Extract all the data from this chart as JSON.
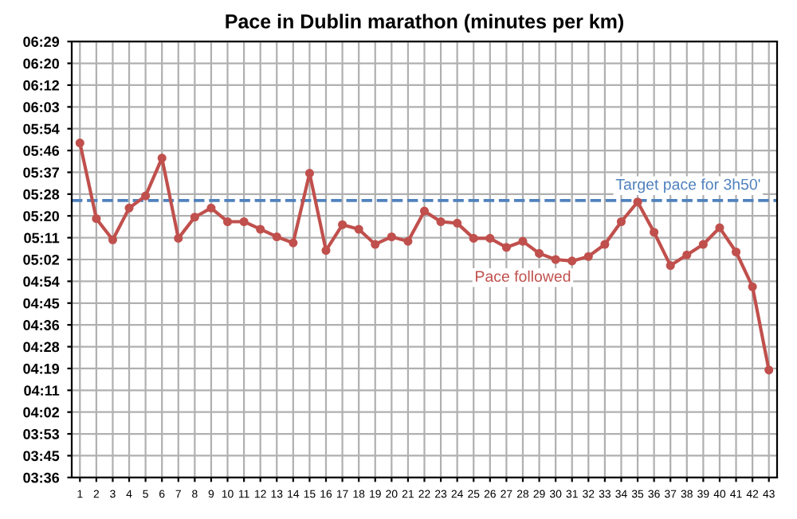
{
  "chart_data": {
    "type": "line",
    "title": "Pace in Dublin marathon (minutes per km)",
    "categories": [
      "1",
      "2",
      "3",
      "4",
      "5",
      "6",
      "7",
      "8",
      "9",
      "10",
      "11",
      "12",
      "13",
      "14",
      "15",
      "16",
      "17",
      "18",
      "19",
      "20",
      "21",
      "22",
      "23",
      "24",
      "25",
      "26",
      "27",
      "28",
      "29",
      "30",
      "31",
      "32",
      "33",
      "34",
      "35",
      "36",
      "37",
      "38",
      "39",
      "40",
      "41",
      "42",
      "43"
    ],
    "series": [
      {
        "name": "Pace followed",
        "color": "#c0504d",
        "values": [
          5.81,
          5.31,
          5.17,
          5.38,
          5.46,
          5.71,
          5.18,
          5.32,
          5.38,
          5.29,
          5.29,
          5.24,
          5.19,
          5.15,
          5.61,
          5.1,
          5.27,
          5.24,
          5.14,
          5.19,
          5.16,
          5.36,
          5.29,
          5.28,
          5.18,
          5.18,
          5.12,
          5.16,
          5.08,
          5.04,
          5.03,
          5.06,
          5.14,
          5.29,
          5.42,
          5.22,
          5.0,
          5.07,
          5.14,
          5.25,
          5.09,
          4.86,
          4.31
        ]
      }
    ],
    "ylim": [
      3.6,
      6.48
    ],
    "yticks": [
      {
        "value": 3.6,
        "label": "03:36"
      },
      {
        "value": 3.744,
        "label": "03:45"
      },
      {
        "value": 3.888,
        "label": "03:53"
      },
      {
        "value": 4.032,
        "label": "04:02"
      },
      {
        "value": 4.176,
        "label": "04:11"
      },
      {
        "value": 4.32,
        "label": "04:19"
      },
      {
        "value": 4.464,
        "label": "04:28"
      },
      {
        "value": 4.608,
        "label": "04:36"
      },
      {
        "value": 4.752,
        "label": "04:45"
      },
      {
        "value": 4.896,
        "label": "04:54"
      },
      {
        "value": 5.04,
        "label": "05:02"
      },
      {
        "value": 5.184,
        "label": "05:11"
      },
      {
        "value": 5.328,
        "label": "05:20"
      },
      {
        "value": 5.472,
        "label": "05:28"
      },
      {
        "value": 5.616,
        "label": "05:37"
      },
      {
        "value": 5.76,
        "label": "05:46"
      },
      {
        "value": 5.904,
        "label": "05:54"
      },
      {
        "value": 6.048,
        "label": "06:03"
      },
      {
        "value": 6.192,
        "label": "06:12"
      },
      {
        "value": 6.336,
        "label": "06:20"
      },
      {
        "value": 6.48,
        "label": "06:29"
      }
    ],
    "ref_lines": [
      {
        "axis": "y",
        "value": 5.43,
        "label": "Target pace for 3h50'",
        "color": "#4f81bd",
        "line_style": "dashed"
      }
    ],
    "grid": true,
    "marker": "circle",
    "line_style": "solid",
    "legend": false
  }
}
